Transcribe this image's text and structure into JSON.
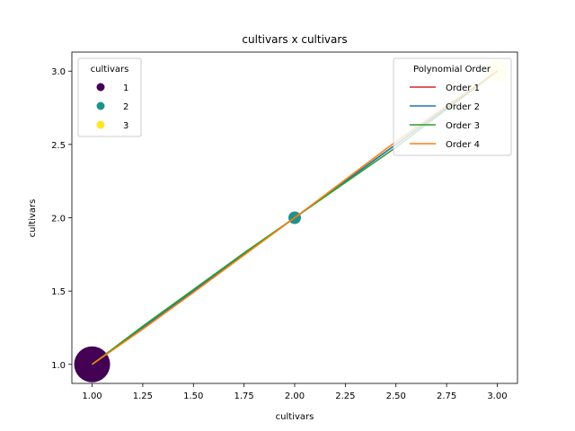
{
  "chart_data": {
    "type": "scatter",
    "title": "cultivars x cultivars",
    "xlabel": "cultivars",
    "ylabel": "cultivars",
    "xlim": [
      0.9,
      3.1
    ],
    "ylim": [
      0.87,
      3.13
    ],
    "xticks": [
      1.0,
      1.25,
      1.5,
      1.75,
      2.0,
      2.25,
      2.5,
      2.75,
      3.0
    ],
    "xtick_labels": [
      "1.00",
      "1.25",
      "1.50",
      "1.75",
      "2.00",
      "2.25",
      "2.50",
      "2.75",
      "3.00"
    ],
    "yticks": [
      1.0,
      1.5,
      2.0,
      2.5,
      3.0
    ],
    "ytick_labels": [
      "1.0",
      "1.5",
      "2.0",
      "2.5",
      "3.0"
    ],
    "points": [
      {
        "x": 1,
        "y": 1,
        "cultivar": "1",
        "color": "#440154",
        "size": "large"
      },
      {
        "x": 2,
        "y": 2,
        "cultivar": "2",
        "color": "#21918c",
        "size": "small"
      },
      {
        "x": 3,
        "y": 3,
        "cultivar": "3",
        "color": "#fde725",
        "size": "medium"
      }
    ],
    "series": [
      {
        "name": "Order 1",
        "color": "#d62728",
        "x": [
          1.0,
          1.25,
          1.5,
          1.75,
          2.0,
          2.25,
          2.5,
          2.75,
          3.0
        ],
        "y": [
          1.0,
          1.25,
          1.5,
          1.75,
          2.0,
          2.25,
          2.5,
          2.75,
          3.0
        ]
      },
      {
        "name": "Order 2",
        "color": "#1f77b4",
        "x": [
          1.0,
          1.25,
          1.5,
          1.75,
          2.0,
          2.25,
          2.5,
          2.75,
          3.0
        ],
        "y": [
          1.0,
          1.25,
          1.5,
          1.75,
          2.0,
          2.25,
          2.5,
          2.75,
          3.0
        ]
      },
      {
        "name": "Order 3",
        "color": "#2ca02c",
        "x": [
          1.0,
          1.25,
          1.5,
          1.75,
          2.0,
          2.25,
          2.5,
          2.75,
          3.0
        ],
        "y": [
          1.0,
          1.26,
          1.51,
          1.76,
          2.0,
          2.24,
          2.48,
          2.74,
          3.0
        ]
      },
      {
        "name": "Order 4",
        "color": "#ff7f0e",
        "x": [
          1.0,
          1.25,
          1.5,
          1.75,
          2.0,
          2.25,
          2.5,
          2.75,
          3.0
        ],
        "y": [
          1.0,
          1.24,
          1.49,
          1.745,
          2.0,
          2.26,
          2.52,
          2.76,
          3.0
        ]
      }
    ],
    "legends": [
      {
        "title": "cultivars",
        "placement": "upper-left",
        "entries": [
          {
            "label": "1",
            "color": "#440154"
          },
          {
            "label": "2",
            "color": "#21918c"
          },
          {
            "label": "3",
            "color": "#fde725"
          }
        ]
      },
      {
        "title": "Polynomial Order",
        "placement": "upper-right",
        "entries": [
          {
            "label": "Order 1",
            "color": "#d62728"
          },
          {
            "label": "Order 2",
            "color": "#1f77b4"
          },
          {
            "label": "Order 3",
            "color": "#2ca02c"
          },
          {
            "label": "Order 4",
            "color": "#ff7f0e"
          }
        ]
      }
    ]
  }
}
